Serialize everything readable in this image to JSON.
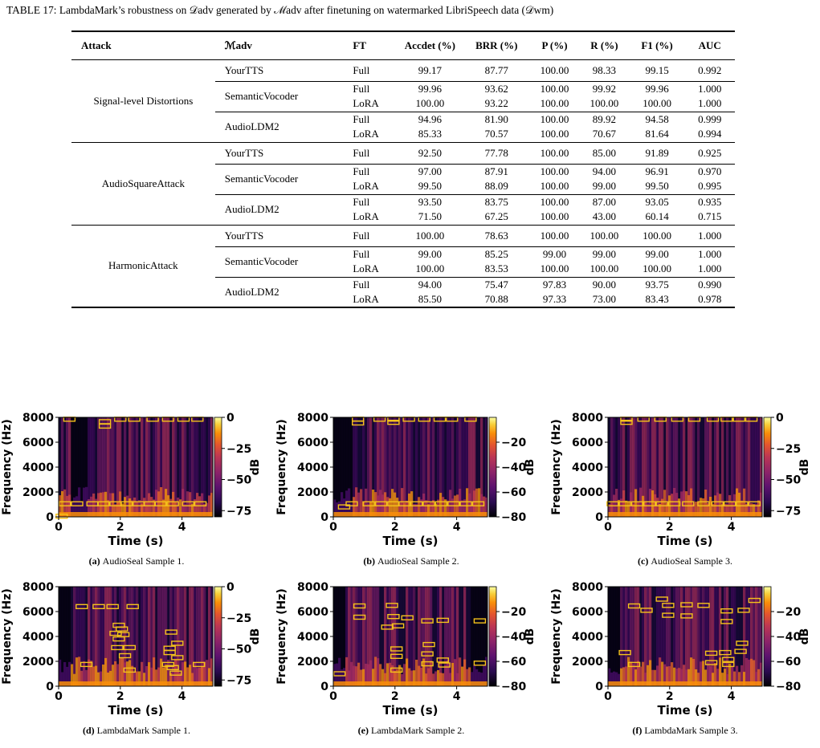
{
  "table": {
    "caption": "TABLE 17: LambdaMark’s robustness on 𝒟adv generated by ℳadv after finetuning on watermarked LibriSpeech data (𝒟wm)",
    "headers": [
      "Attack",
      "ℳadv",
      "FT",
      "Accdet (%)",
      "BRR (%)",
      "P (%)",
      "R (%)",
      "F1 (%)",
      "AUC"
    ],
    "groups": [
      {
        "attack": "Signal-level Distortions",
        "models": [
          {
            "name": "YourTTS",
            "rows": [
              [
                "Full",
                "99.17",
                "87.77",
                "100.00",
                "98.33",
                "99.15",
                "0.992"
              ]
            ]
          },
          {
            "name": "SemanticVocoder",
            "rows": [
              [
                "Full",
                "99.96",
                "93.62",
                "100.00",
                "99.92",
                "99.96",
                "1.000"
              ],
              [
                "LoRA",
                "100.00",
                "93.22",
                "100.00",
                "100.00",
                "100.00",
                "1.000"
              ]
            ]
          },
          {
            "name": "AudioLDM2",
            "rows": [
              [
                "Full",
                "94.96",
                "81.90",
                "100.00",
                "89.92",
                "94.58",
                "0.999"
              ],
              [
                "LoRA",
                "85.33",
                "70.57",
                "100.00",
                "70.67",
                "81.64",
                "0.994"
              ]
            ]
          }
        ]
      },
      {
        "attack": "AudioSquareAttack",
        "models": [
          {
            "name": "YourTTS",
            "rows": [
              [
                "Full",
                "92.50",
                "77.78",
                "100.00",
                "85.00",
                "91.89",
                "0.925"
              ]
            ]
          },
          {
            "name": "SemanticVocoder",
            "rows": [
              [
                "Full",
                "97.00",
                "87.91",
                "100.00",
                "94.00",
                "96.91",
                "0.970"
              ],
              [
                "LoRA",
                "99.50",
                "88.09",
                "100.00",
                "99.00",
                "99.50",
                "0.995"
              ]
            ]
          },
          {
            "name": "AudioLDM2",
            "rows": [
              [
                "Full",
                "93.50",
                "83.75",
                "100.00",
                "87.00",
                "93.05",
                "0.935"
              ],
              [
                "LoRA",
                "71.50",
                "67.25",
                "100.00",
                "43.00",
                "60.14",
                "0.715"
              ]
            ]
          }
        ]
      },
      {
        "attack": "HarmonicAttack",
        "models": [
          {
            "name": "YourTTS",
            "rows": [
              [
                "Full",
                "100.00",
                "78.63",
                "100.00",
                "100.00",
                "100.00",
                "1.000"
              ]
            ]
          },
          {
            "name": "SemanticVocoder",
            "rows": [
              [
                "Full",
                "99.00",
                "85.25",
                "99.00",
                "99.00",
                "99.00",
                "1.000"
              ],
              [
                "LoRA",
                "100.00",
                "83.53",
                "100.00",
                "100.00",
                "100.00",
                "1.000"
              ]
            ]
          },
          {
            "name": "AudioLDM2",
            "rows": [
              [
                "Full",
                "94.00",
                "75.47",
                "97.83",
                "90.00",
                "93.75",
                "0.990"
              ],
              [
                "LoRA",
                "85.50",
                "70.88",
                "97.33",
                "73.00",
                "83.43",
                "0.978"
              ]
            ]
          }
        ]
      }
    ]
  },
  "colors": {
    "box": "#f5c21b",
    "cmap": [
      "#000004",
      "#1b0c41",
      "#4a0c6b",
      "#781c6d",
      "#a52c60",
      "#cf4446",
      "#ed6925",
      "#fb9b06",
      "#f7d13d",
      "#fcffa4"
    ]
  },
  "axes": {
    "xlabel": "Time (s)",
    "ylabel": "Frequency (Hz)",
    "cbar_label": "dB",
    "yticks": [
      "0",
      "2000",
      "4000",
      "6000",
      "8000"
    ],
    "xticks": [
      "0",
      "2",
      "4"
    ]
  },
  "chart_data": [
    {
      "type": "heatmap",
      "panel": "a",
      "label": "(a)",
      "caption": "AudioSeal Sample 1.",
      "xlim": [
        0,
        5
      ],
      "ylim": [
        0,
        8000
      ],
      "cbar_ticks": [
        "0",
        "−25",
        "−50",
        "−75"
      ],
      "cbar_range": [
        -80,
        0
      ],
      "boxes": [
        [
          0.1,
          0.05
        ],
        [
          0.2,
          1.05
        ],
        [
          0.6,
          1.05
        ],
        [
          1.1,
          1.05
        ],
        [
          1.45,
          1.05
        ],
        [
          1.85,
          1.05
        ],
        [
          2.2,
          1.05
        ],
        [
          2.6,
          1.05
        ],
        [
          2.95,
          1.05
        ],
        [
          3.3,
          1.05
        ],
        [
          3.7,
          1.05
        ],
        [
          4.2,
          1.05
        ],
        [
          4.6,
          1.05
        ],
        [
          0.35,
          7.85
        ],
        [
          1.5,
          7.65
        ],
        [
          1.5,
          7.3
        ],
        [
          2.0,
          7.85
        ],
        [
          2.45,
          7.85
        ],
        [
          3.05,
          7.85
        ],
        [
          3.55,
          7.85
        ],
        [
          4.05,
          7.85
        ],
        [
          4.5,
          7.85
        ]
      ]
    },
    {
      "type": "heatmap",
      "panel": "b",
      "label": "(b)",
      "caption": "AudioSeal Sample 2.",
      "xlim": [
        0,
        5
      ],
      "ylim": [
        0,
        8000
      ],
      "cbar_ticks": [
        "−20",
        "−40",
        "−60",
        "−80"
      ],
      "cbar_range": [
        -80,
        0
      ],
      "boxes": [
        [
          0.35,
          0.8
        ],
        [
          0.6,
          1.05
        ],
        [
          1.15,
          1.05
        ],
        [
          1.55,
          1.05
        ],
        [
          1.95,
          1.05
        ],
        [
          2.3,
          1.05
        ],
        [
          2.7,
          1.05
        ],
        [
          3.1,
          1.05
        ],
        [
          3.5,
          1.05
        ],
        [
          3.9,
          1.05
        ],
        [
          4.3,
          1.05
        ],
        [
          4.7,
          1.05
        ],
        [
          0.8,
          7.55
        ],
        [
          0.8,
          7.85
        ],
        [
          1.5,
          7.85
        ],
        [
          1.95,
          7.85
        ],
        [
          1.95,
          7.6
        ],
        [
          2.45,
          7.85
        ],
        [
          2.95,
          7.85
        ],
        [
          3.45,
          7.85
        ],
        [
          3.85,
          7.85
        ],
        [
          4.45,
          7.85
        ]
      ]
    },
    {
      "type": "heatmap",
      "panel": "c",
      "label": "(c)",
      "caption": "AudioSeal Sample 3.",
      "xlim": [
        0,
        5
      ],
      "ylim": [
        0,
        8000
      ],
      "cbar_ticks": [
        "0",
        "−25",
        "−50",
        "−75"
      ],
      "cbar_range": [
        -80,
        0
      ],
      "boxes": [
        [
          0.15,
          1.05
        ],
        [
          0.55,
          1.05
        ],
        [
          0.95,
          1.05
        ],
        [
          1.35,
          1.05
        ],
        [
          1.75,
          1.05
        ],
        [
          2.15,
          1.05
        ],
        [
          2.6,
          1.05
        ],
        [
          3.1,
          1.05
        ],
        [
          3.55,
          1.05
        ],
        [
          3.95,
          1.05
        ],
        [
          4.35,
          1.05
        ],
        [
          4.75,
          1.05
        ],
        [
          0.6,
          7.85
        ],
        [
          0.6,
          7.6
        ],
        [
          1.15,
          7.85
        ],
        [
          1.7,
          7.85
        ],
        [
          2.25,
          7.85
        ],
        [
          2.8,
          7.85
        ],
        [
          3.4,
          7.85
        ],
        [
          3.85,
          7.85
        ],
        [
          4.25,
          7.85
        ],
        [
          4.65,
          7.85
        ]
      ]
    },
    {
      "type": "heatmap",
      "panel": "d",
      "label": "(d)",
      "caption": "LambdaMark Sample 1.",
      "xlim": [
        0,
        5
      ],
      "ylim": [
        0,
        8000
      ],
      "cbar_ticks": [
        "0",
        "−25",
        "−50",
        "−75"
      ],
      "cbar_range": [
        -80,
        0
      ],
      "boxes": [
        [
          0.75,
          6.4
        ],
        [
          1.3,
          6.4
        ],
        [
          1.75,
          6.4
        ],
        [
          2.4,
          6.4
        ],
        [
          1.95,
          4.9
        ],
        [
          2.05,
          4.6
        ],
        [
          1.85,
          4.25
        ],
        [
          2.1,
          4.15
        ],
        [
          1.95,
          3.8
        ],
        [
          1.9,
          3.1
        ],
        [
          2.3,
          3.1
        ],
        [
          2.15,
          2.45
        ],
        [
          2.3,
          1.3
        ],
        [
          0.9,
          1.75
        ],
        [
          3.65,
          4.35
        ],
        [
          3.85,
          3.45
        ],
        [
          3.6,
          3.05
        ],
        [
          3.6,
          2.7
        ],
        [
          3.85,
          2.3
        ],
        [
          3.55,
          1.75
        ],
        [
          3.7,
          1.5
        ],
        [
          3.8,
          1.05
        ],
        [
          4.55,
          1.75
        ]
      ]
    },
    {
      "type": "heatmap",
      "panel": "e",
      "label": "(e)",
      "caption": "LambdaMark Sample 2.",
      "xlim": [
        0,
        5
      ],
      "ylim": [
        0,
        8000
      ],
      "cbar_ticks": [
        "−20",
        "−40",
        "−60",
        "−80"
      ],
      "cbar_range": [
        -80,
        0
      ],
      "boxes": [
        [
          0.2,
          1.0
        ],
        [
          0.85,
          6.45
        ],
        [
          0.85,
          5.55
        ],
        [
          1.9,
          6.5
        ],
        [
          1.95,
          5.6
        ],
        [
          2.4,
          5.5
        ],
        [
          2.1,
          4.85
        ],
        [
          1.75,
          4.75
        ],
        [
          2.05,
          3.0
        ],
        [
          2.05,
          2.4
        ],
        [
          2.05,
          1.3
        ],
        [
          3.05,
          5.25
        ],
        [
          3.55,
          5.3
        ],
        [
          3.1,
          3.35
        ],
        [
          3.05,
          2.6
        ],
        [
          3.05,
          1.8
        ],
        [
          3.55,
          2.1
        ],
        [
          3.6,
          1.7
        ],
        [
          4.75,
          5.25
        ],
        [
          4.75,
          1.85
        ]
      ]
    },
    {
      "type": "heatmap",
      "panel": "f",
      "label": "(f)",
      "caption": "LambdaMark Sample 3.",
      "xlim": [
        0,
        5
      ],
      "ylim": [
        0,
        8000
      ],
      "cbar_ticks": [
        "−20",
        "−40",
        "−60",
        "−80"
      ],
      "cbar_range": [
        -80,
        0
      ],
      "boxes": [
        [
          0.85,
          6.45
        ],
        [
          1.25,
          6.1
        ],
        [
          1.75,
          7.0
        ],
        [
          1.95,
          6.5
        ],
        [
          1.95,
          5.7
        ],
        [
          2.55,
          6.55
        ],
        [
          2.55,
          5.65
        ],
        [
          3.1,
          6.5
        ],
        [
          3.85,
          6.05
        ],
        [
          3.85,
          5.2
        ],
        [
          4.4,
          6.1
        ],
        [
          4.75,
          6.9
        ],
        [
          0.55,
          2.7
        ],
        [
          0.85,
          1.75
        ],
        [
          3.35,
          2.65
        ],
        [
          3.35,
          1.9
        ],
        [
          3.8,
          2.7
        ],
        [
          3.9,
          2.15
        ],
        [
          3.9,
          1.75
        ],
        [
          4.3,
          2.8
        ],
        [
          4.35,
          3.45
        ]
      ]
    }
  ]
}
